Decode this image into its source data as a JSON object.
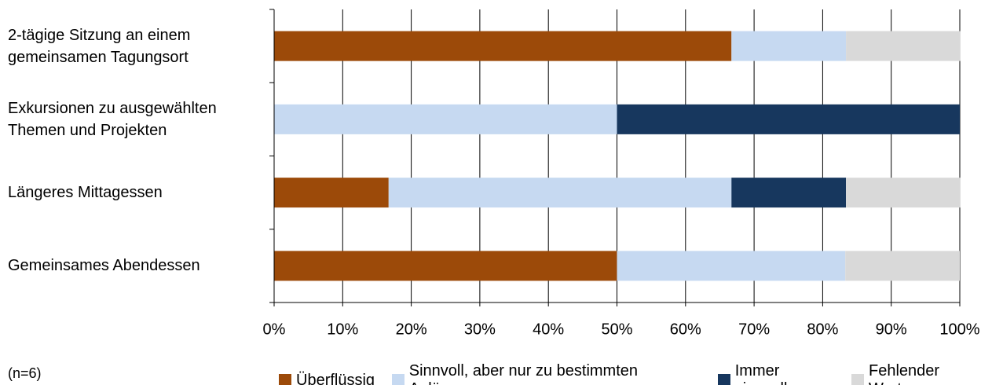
{
  "chart_data": {
    "type": "stacked_barh",
    "categories": [
      "2-tägige Sitzung an einem\ngemeinsamen Tagungsort",
      "Exkursionen zu ausgewählten\nThemen und Projekten",
      "Längeres Mittagessen",
      "Gemeinsames Abendessen"
    ],
    "series": [
      {
        "name": "Überflüssig",
        "color": "#9c4a09",
        "values": [
          66.7,
          0,
          16.7,
          50
        ]
      },
      {
        "name": "Sinnvoll, aber nur zu bestimmten Anlässen",
        "color": "#c6d9f1",
        "values": [
          16.7,
          50,
          50,
          33.3
        ]
      },
      {
        "name": "Immer sinnvoll",
        "color": "#17375e",
        "values": [
          0,
          50,
          16.7,
          0
        ]
      },
      {
        "name": "Fehlender Wert",
        "color": "#d9d9d9",
        "values": [
          16.7,
          0,
          16.7,
          16.7
        ]
      }
    ],
    "xlim": [
      0,
      100
    ],
    "xticks": [
      {
        "value": 0,
        "label": "0%"
      },
      {
        "value": 10,
        "label": "10%"
      },
      {
        "value": 20,
        "label": "20%"
      },
      {
        "value": 30,
        "label": "30%"
      },
      {
        "value": 40,
        "label": "40%"
      },
      {
        "value": 50,
        "label": "50%"
      },
      {
        "value": 60,
        "label": "60%"
      },
      {
        "value": 70,
        "label": "70%"
      },
      {
        "value": 80,
        "label": "80%"
      },
      {
        "value": 90,
        "label": "90%"
      },
      {
        "value": 100,
        "label": "100%"
      }
    ],
    "grid": true,
    "annotation": "(n=6)"
  }
}
